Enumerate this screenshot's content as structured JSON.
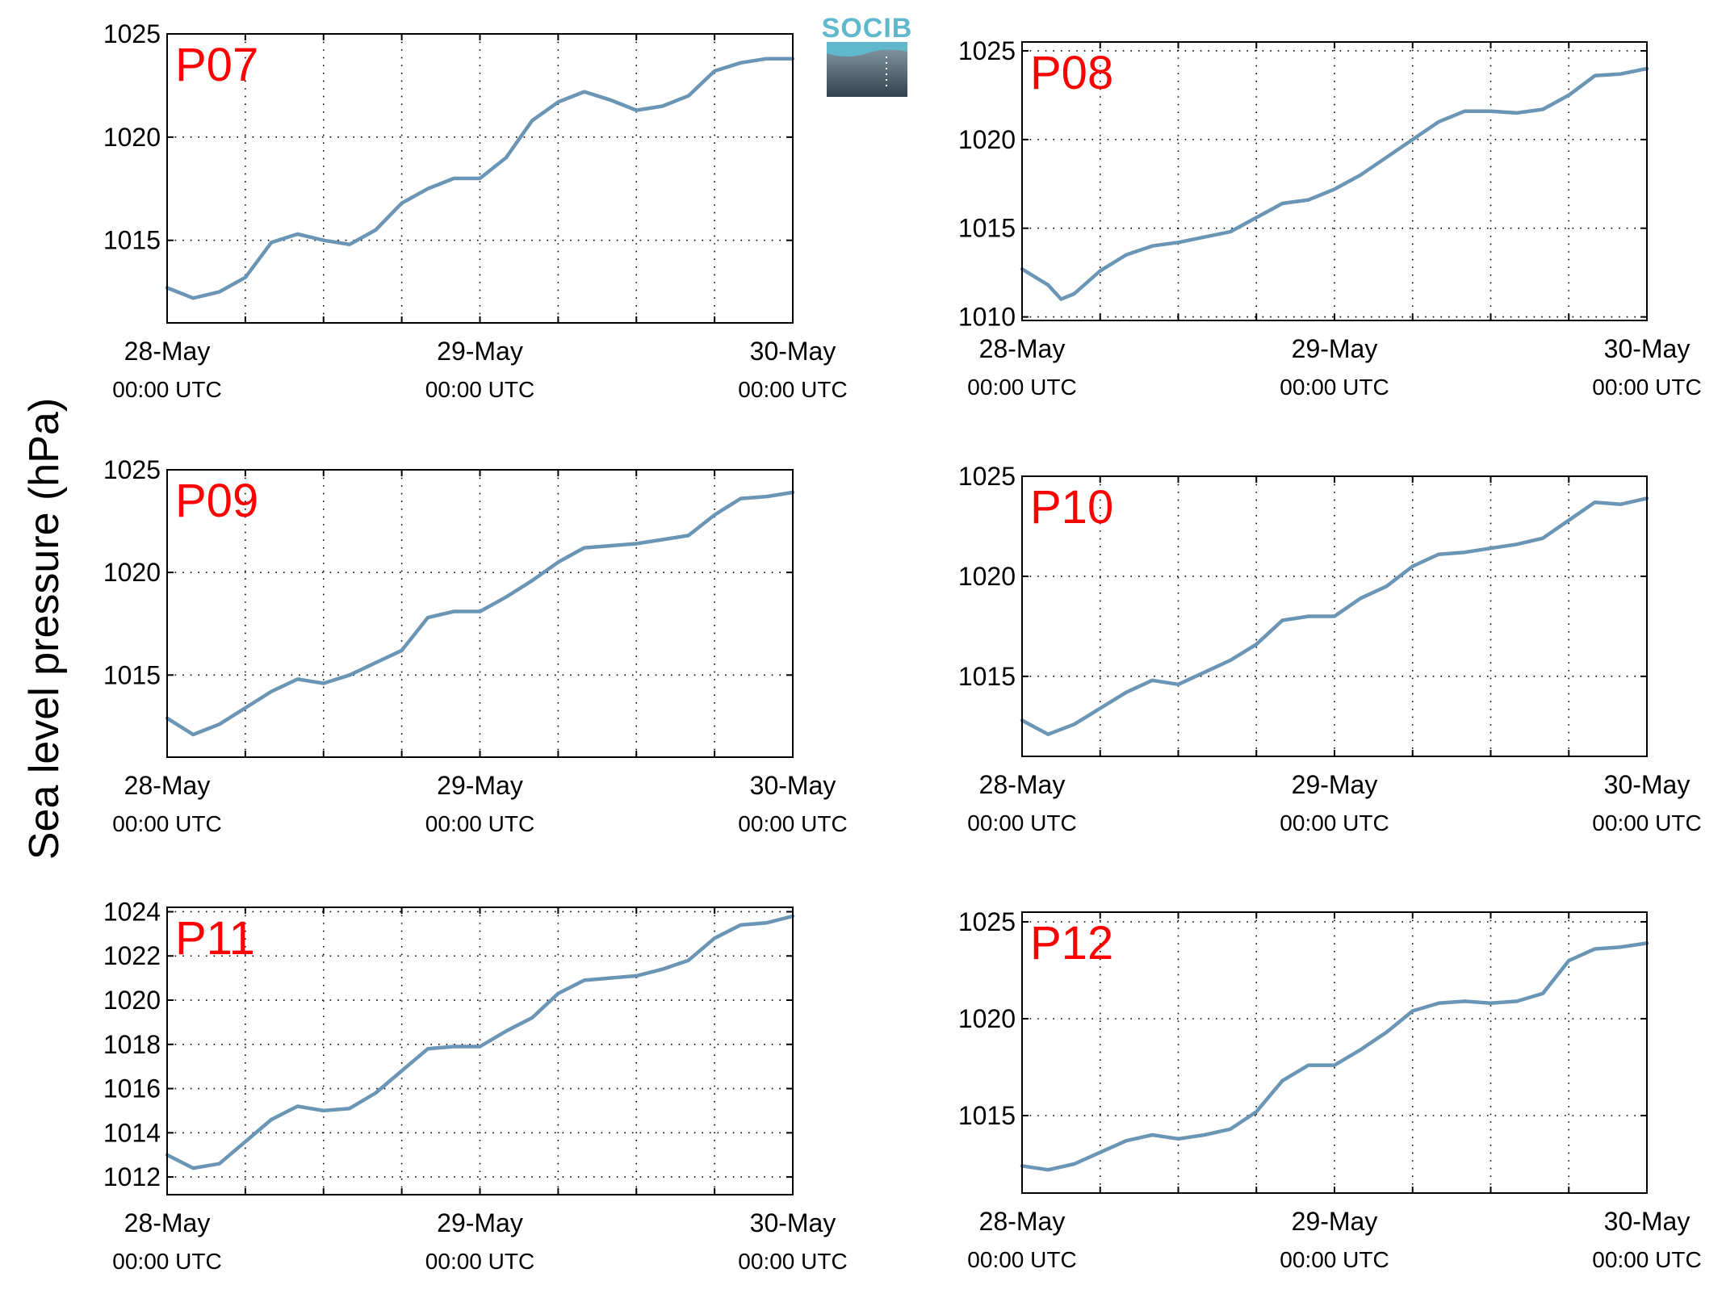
{
  "figure": {
    "ylabel": "Sea level pressure (hPa)",
    "logo_text": "SOCIB",
    "colors": {
      "line": "#6b95b5",
      "panel_label": "#ff0000",
      "logo_top": "#5fb8cc",
      "logo_bottom": "#33434c"
    }
  },
  "chart_data": [
    {
      "type": "line",
      "name": "P07",
      "x_tick_labels": [
        [
          "28-May",
          "00:00 UTC"
        ],
        [
          "29-May",
          "00:00 UTC"
        ],
        [
          "30-May",
          "00:00 UTC"
        ]
      ],
      "x_range_hours": [
        0,
        48
      ],
      "ylim": [
        1011,
        1025
      ],
      "yticks": [
        1015,
        1020,
        1025
      ],
      "grid": true,
      "x": [
        0,
        2,
        4,
        6,
        8,
        10,
        12,
        14,
        16,
        18,
        20,
        22,
        24,
        26,
        28,
        30,
        32,
        34,
        36,
        38,
        40,
        42,
        44,
        46,
        48
      ],
      "y": [
        1012.7,
        1012.2,
        1012.5,
        1013.2,
        1014.9,
        1015.3,
        1015.0,
        1014.8,
        1015.5,
        1016.8,
        1017.5,
        1018.0,
        1018.0,
        1019.0,
        1020.8,
        1021.7,
        1022.2,
        1021.8,
        1021.3,
        1021.5,
        1022.0,
        1023.2,
        1023.6,
        1023.8,
        1023.8
      ]
    },
    {
      "type": "line",
      "name": "P08",
      "x_tick_labels": [
        [
          "28-May",
          "00:00 UTC"
        ],
        [
          "29-May",
          "00:00 UTC"
        ],
        [
          "30-May",
          "00:00 UTC"
        ]
      ],
      "x_range_hours": [
        0,
        48
      ],
      "ylim": [
        1009.8,
        1025.5
      ],
      "yticks": [
        1010,
        1015,
        1020,
        1025
      ],
      "grid": true,
      "x": [
        0,
        2,
        3,
        4,
        6,
        8,
        10,
        12,
        14,
        16,
        18,
        20,
        22,
        24,
        26,
        28,
        30,
        32,
        34,
        36,
        38,
        40,
        42,
        44,
        46,
        48
      ],
      "y": [
        1012.7,
        1011.8,
        1011.0,
        1011.3,
        1012.6,
        1013.5,
        1014.0,
        1014.2,
        1014.5,
        1014.8,
        1015.6,
        1016.4,
        1016.6,
        1017.2,
        1018.0,
        1019.0,
        1020.0,
        1021.0,
        1021.6,
        1021.6,
        1021.5,
        1021.7,
        1022.5,
        1023.6,
        1023.7,
        1024.0
      ]
    },
    {
      "type": "line",
      "name": "P09",
      "x_tick_labels": [
        [
          "28-May",
          "00:00 UTC"
        ],
        [
          "29-May",
          "00:00 UTC"
        ],
        [
          "30-May",
          "00:00 UTC"
        ]
      ],
      "x_range_hours": [
        0,
        48
      ],
      "ylim": [
        1011,
        1025
      ],
      "yticks": [
        1015,
        1020,
        1025
      ],
      "grid": true,
      "x": [
        0,
        2,
        4,
        6,
        8,
        10,
        12,
        14,
        16,
        18,
        20,
        22,
        24,
        26,
        28,
        30,
        32,
        34,
        36,
        38,
        40,
        42,
        44,
        46,
        48
      ],
      "y": [
        1012.9,
        1012.1,
        1012.6,
        1013.4,
        1014.2,
        1014.8,
        1014.6,
        1015.0,
        1015.6,
        1016.2,
        1017.8,
        1018.1,
        1018.1,
        1018.8,
        1019.6,
        1020.5,
        1021.2,
        1021.3,
        1021.4,
        1021.6,
        1021.8,
        1022.8,
        1023.6,
        1023.7,
        1023.9
      ]
    },
    {
      "type": "line",
      "name": "P10",
      "x_tick_labels": [
        [
          "28-May",
          "00:00 UTC"
        ],
        [
          "29-May",
          "00:00 UTC"
        ],
        [
          "30-May",
          "00:00 UTC"
        ]
      ],
      "x_range_hours": [
        0,
        48
      ],
      "ylim": [
        1011,
        1025
      ],
      "yticks": [
        1015,
        1020,
        1025
      ],
      "grid": true,
      "x": [
        0,
        2,
        4,
        6,
        8,
        10,
        12,
        14,
        16,
        18,
        20,
        22,
        24,
        26,
        28,
        30,
        32,
        34,
        36,
        38,
        40,
        42,
        44,
        46,
        48
      ],
      "y": [
        1012.8,
        1012.1,
        1012.6,
        1013.4,
        1014.2,
        1014.8,
        1014.6,
        1015.2,
        1015.8,
        1016.6,
        1017.8,
        1018.0,
        1018.0,
        1018.9,
        1019.5,
        1020.5,
        1021.1,
        1021.2,
        1021.4,
        1021.6,
        1021.9,
        1022.8,
        1023.7,
        1023.6,
        1023.9
      ]
    },
    {
      "type": "line",
      "name": "P11",
      "x_tick_labels": [
        [
          "28-May",
          "00:00 UTC"
        ],
        [
          "29-May",
          "00:00 UTC"
        ],
        [
          "30-May",
          "00:00 UTC"
        ]
      ],
      "x_range_hours": [
        0,
        48
      ],
      "ylim": [
        1011.2,
        1024.2
      ],
      "yticks": [
        1012,
        1014,
        1016,
        1018,
        1020,
        1022,
        1024
      ],
      "grid": true,
      "x": [
        0,
        2,
        4,
        6,
        8,
        10,
        12,
        14,
        16,
        18,
        20,
        22,
        24,
        26,
        28,
        30,
        32,
        34,
        36,
        38,
        40,
        42,
        44,
        46,
        48
      ],
      "y": [
        1013.0,
        1012.4,
        1012.6,
        1013.6,
        1014.6,
        1015.2,
        1015.0,
        1015.1,
        1015.8,
        1016.8,
        1017.8,
        1017.9,
        1017.9,
        1018.6,
        1019.2,
        1020.3,
        1020.9,
        1021.0,
        1021.1,
        1021.4,
        1021.8,
        1022.8,
        1023.4,
        1023.5,
        1023.8
      ]
    },
    {
      "type": "line",
      "name": "P12",
      "x_tick_labels": [
        [
          "28-May",
          "00:00 UTC"
        ],
        [
          "29-May",
          "00:00 UTC"
        ],
        [
          "30-May",
          "00:00 UTC"
        ]
      ],
      "x_range_hours": [
        0,
        48
      ],
      "ylim": [
        1011,
        1025.5
      ],
      "yticks": [
        1015,
        1020,
        1025
      ],
      "grid": true,
      "x": [
        0,
        2,
        4,
        6,
        8,
        10,
        12,
        14,
        16,
        18,
        20,
        22,
        24,
        26,
        28,
        30,
        32,
        34,
        36,
        38,
        40,
        42,
        44,
        46,
        48
      ],
      "y": [
        1012.4,
        1012.2,
        1012.5,
        1013.1,
        1013.7,
        1014.0,
        1013.8,
        1014.0,
        1014.3,
        1015.2,
        1016.8,
        1017.6,
        1017.6,
        1018.4,
        1019.3,
        1020.4,
        1020.8,
        1020.9,
        1020.8,
        1020.9,
        1021.3,
        1023.0,
        1023.6,
        1023.7,
        1023.9
      ]
    }
  ]
}
